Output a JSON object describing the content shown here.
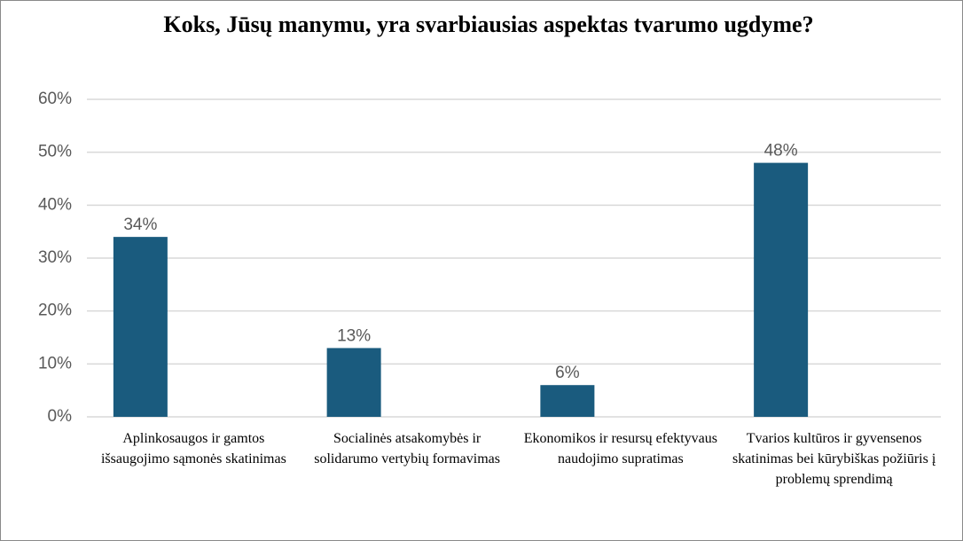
{
  "chart_data": {
    "type": "bar",
    "title": "Koks, Jūsų manymu, yra svarbiausias aspektas tvarumo ugdyme?",
    "categories": [
      "Aplinkosaugos ir gamtos išsaugojimo sąmonės skatinimas",
      "Socialinės atsakomybės ir solidarumo vertybių formavimas",
      "Ekonomikos ir resursų efektyvaus naudojimo supratimas",
      "Tvarios kultūros ir gyvensenos skatinimas bei kūrybiškas požiūris į problemų sprendimą"
    ],
    "values": [
      34,
      13,
      6,
      48
    ],
    "value_labels": [
      "34%",
      "13%",
      "6%",
      "48%"
    ],
    "color": "#1a5b7e",
    "ylim": [
      0,
      60
    ],
    "yticks": [
      {
        "value": 0,
        "label": "0%"
      },
      {
        "value": 10,
        "label": "10%"
      },
      {
        "value": 20,
        "label": "20%"
      },
      {
        "value": 30,
        "label": "30%"
      },
      {
        "value": 40,
        "label": "40%"
      },
      {
        "value": 50,
        "label": "50%"
      },
      {
        "value": 60,
        "label": "60%"
      }
    ],
    "grid": true
  }
}
